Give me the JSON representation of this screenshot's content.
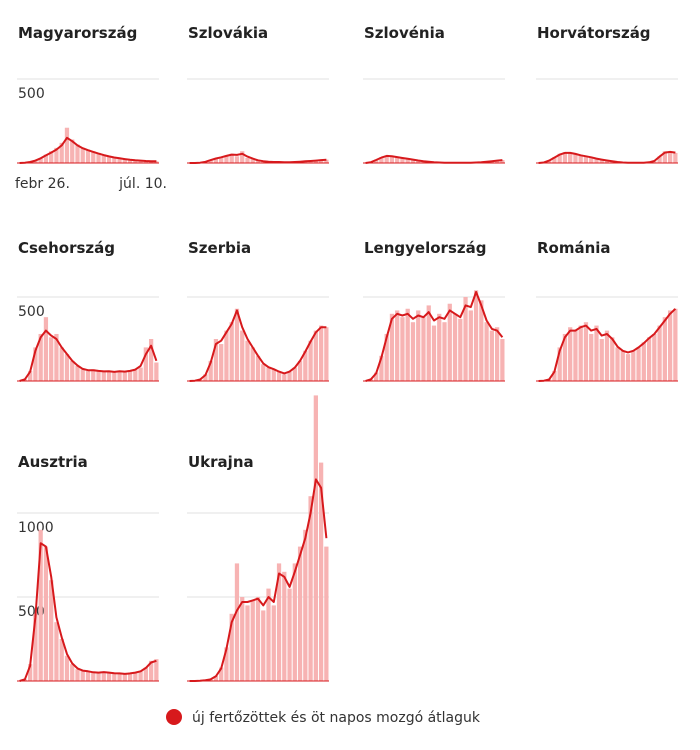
{
  "chart_data": {
    "type": "small-multiples",
    "bar_color": "#f7b3b3",
    "line_color": "#d7191c",
    "legend_label": "új fertőzöttek és öt napos mozgó átlaguk",
    "categories": [
      "febr 26.",
      null,
      null,
      null,
      null,
      null,
      null,
      null,
      null,
      null,
      null,
      null,
      null,
      null,
      null,
      null,
      null,
      null,
      null,
      null,
      null,
      null,
      null,
      null,
      null,
      null,
      "júl. 10."
    ],
    "rows": [
      {
        "ylim": [
          0,
          500
        ],
        "yticks": [
          500
        ],
        "panels": [
          {
            "name": "Magyarország",
            "bars": [
              0,
              2,
              5,
              15,
              30,
              50,
              70,
              90,
              120,
              210,
              140,
              110,
              90,
              80,
              70,
              60,
              50,
              40,
              35,
              30,
              25,
              20,
              15,
              15,
              12,
              10,
              10
            ],
            "line": [
              0,
              2,
              6,
              14,
              28,
              45,
              62,
              80,
              105,
              150,
              130,
              105,
              88,
              76,
              66,
              56,
              47,
              39,
              33,
              28,
              23,
              19,
              16,
              14,
              12,
              11,
              10
            ]
          },
          {
            "name": "Szlovákia",
            "bars": [
              0,
              0,
              2,
              8,
              20,
              30,
              35,
              45,
              55,
              40,
              70,
              30,
              25,
              15,
              10,
              8,
              6,
              6,
              5,
              5,
              6,
              8,
              10,
              12,
              15,
              18,
              20
            ],
            "line": [
              0,
              0,
              2,
              7,
              17,
              27,
              34,
              42,
              50,
              48,
              55,
              38,
              26,
              16,
              11,
              8,
              6,
              6,
              5,
              5,
              6,
              8,
              10,
              12,
              14,
              17,
              19
            ]
          },
          {
            "name": "Szlovénia",
            "bars": [
              0,
              5,
              20,
              35,
              45,
              40,
              35,
              30,
              25,
              20,
              15,
              10,
              8,
              5,
              3,
              2,
              2,
              2,
              2,
              2,
              2,
              3,
              5,
              8,
              12,
              15,
              18
            ],
            "line": [
              0,
              5,
              18,
              32,
              42,
              40,
              35,
              30,
              25,
              20,
              15,
              11,
              8,
              5,
              3,
              2,
              2,
              2,
              2,
              2,
              2,
              3,
              5,
              8,
              11,
              14,
              17
            ]
          },
          {
            "name": "Horvátország",
            "bars": [
              0,
              3,
              15,
              35,
              55,
              65,
              60,
              55,
              45,
              40,
              35,
              25,
              20,
              15,
              10,
              5,
              3,
              2,
              2,
              2,
              2,
              3,
              10,
              40,
              70,
              65,
              60
            ],
            "line": [
              0,
              3,
              14,
              32,
              50,
              60,
              60,
              54,
              46,
              40,
              34,
              26,
              20,
              15,
              10,
              6,
              3,
              2,
              2,
              2,
              2,
              4,
              12,
              38,
              62,
              66,
              62
            ]
          }
        ]
      },
      {
        "ylim": [
          0,
          500
        ],
        "yticks": [
          500
        ],
        "panels": [
          {
            "name": "Csehország",
            "bars": [
              0,
              10,
              60,
              200,
              280,
              380,
              260,
              280,
              200,
              160,
              120,
              90,
              70,
              60,
              70,
              60,
              55,
              60,
              50,
              60,
              55,
              60,
              70,
              80,
              200,
              250,
              110
            ],
            "line": [
              0,
              10,
              55,
              180,
              260,
              300,
              270,
              250,
              200,
              160,
              120,
              92,
              72,
              64,
              64,
              60,
              57,
              58,
              54,
              58,
              56,
              60,
              68,
              90,
              160,
              210,
              120
            ]
          },
          {
            "name": "Szerbia",
            "bars": [
              0,
              2,
              10,
              40,
              120,
              250,
              220,
              300,
              350,
              430,
              300,
              240,
              200,
              150,
              100,
              80,
              70,
              55,
              40,
              55,
              80,
              120,
              180,
              240,
              300,
              330,
              320
            ],
            "line": [
              0,
              2,
              9,
              35,
              110,
              220,
              240,
              290,
              340,
              420,
              320,
              250,
              200,
              150,
              105,
              82,
              70,
              56,
              45,
              56,
              80,
              120,
              175,
              235,
              290,
              320,
              320
            ]
          },
          {
            "name": "Lengyelország",
            "bars": [
              0,
              10,
              50,
              150,
              280,
              400,
              420,
              380,
              430,
              350,
              420,
              380,
              450,
              330,
              400,
              350,
              460,
              400,
              370,
              500,
              420,
              540,
              480,
              350,
              300,
              320,
              250
            ],
            "line": [
              0,
              10,
              45,
              140,
              260,
              370,
              400,
              390,
              400,
              370,
              390,
              380,
              410,
              360,
              380,
              370,
              420,
              400,
              380,
              450,
              440,
              530,
              450,
              360,
              310,
              300,
              260
            ]
          },
          {
            "name": "Románia",
            "bars": [
              0,
              2,
              10,
              60,
              200,
              280,
              320,
              300,
              330,
              350,
              280,
              330,
              250,
              300,
              260,
              200,
              180,
              160,
              180,
              200,
              230,
              260,
              280,
              330,
              380,
              420,
              430
            ],
            "line": [
              0,
              2,
              9,
              55,
              180,
              260,
              300,
              300,
              320,
              330,
              300,
              310,
              270,
              280,
              250,
              205,
              180,
              170,
              180,
              200,
              225,
              255,
              280,
              320,
              360,
              400,
              430
            ]
          }
        ]
      },
      {
        "ylim": [
          0,
          1500
        ],
        "yticks": [
          500,
          1000
        ],
        "panels": [
          {
            "name": "Ausztria",
            "bars": [
              0,
              10,
              100,
              400,
              900,
              800,
              600,
              350,
              250,
              150,
              100,
              70,
              60,
              60,
              50,
              50,
              55,
              50,
              45,
              45,
              40,
              45,
              50,
              60,
              80,
              120,
              130
            ],
            "line": [
              0,
              10,
              90,
              380,
              820,
              800,
              620,
              380,
              260,
              160,
              105,
              75,
              62,
              58,
              52,
              50,
              53,
              50,
              46,
              45,
              42,
              45,
              50,
              58,
              78,
              110,
              120
            ]
          },
          {
            "name": "Ukrajna",
            "bars": [
              0,
              0,
              2,
              5,
              10,
              30,
              80,
              200,
              400,
              700,
              500,
              450,
              480,
              500,
              420,
              550,
              450,
              700,
              650,
              550,
              700,
              800,
              900,
              1100,
              1700,
              1300,
              800
            ],
            "line": [
              0,
              0,
              2,
              5,
              10,
              28,
              75,
              190,
              350,
              420,
              470,
              470,
              480,
              490,
              450,
              500,
              470,
              640,
              620,
              560,
              650,
              750,
              850,
              1000,
              1200,
              1150,
              850
            ]
          }
        ]
      }
    ]
  }
}
